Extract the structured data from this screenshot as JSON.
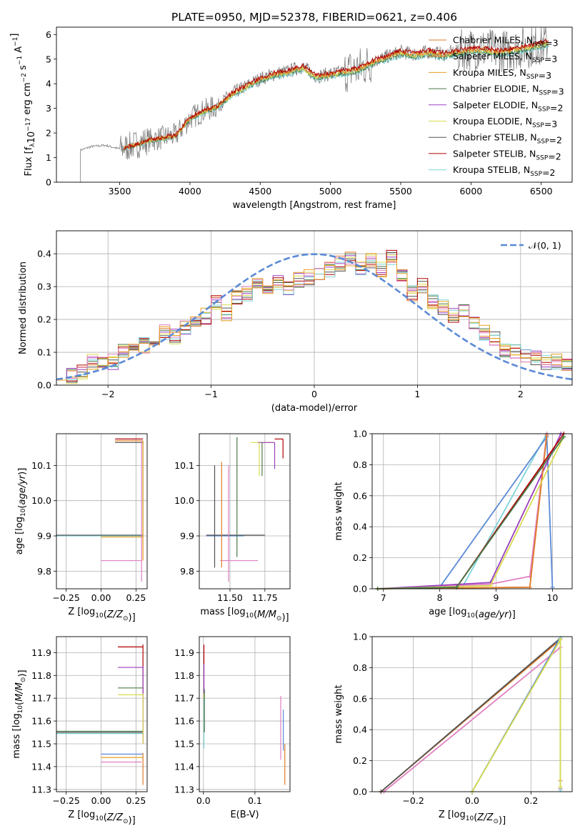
{
  "figure_title": "PLATE=0950, MJD=52378, FIBERID=0621, z=0.406",
  "colors": {
    "c1": "#1f77b4",
    "c2": "#e07b28",
    "c3": "#e6a020",
    "c4": "#4a7a4a",
    "c5": "#9a3fc0",
    "c6": "#d8dc50",
    "c7": "#505050",
    "c8": "#b00000",
    "c9": "#7fd4d8",
    "data": "#808080",
    "gauss": "#5b8ad6",
    "pink": "#e07fc0"
  },
  "chart_data": [
    {
      "id": "spectrum",
      "type": "line",
      "xlabel": "wavelength [Angstrom, rest frame]",
      "ylabel": "Flux [f",
      "ylabel_parts": [
        "Flux [f",
        "λ",
        "10",
        "−17",
        " erg cm",
        "−2",
        " s",
        "−1",
        " A",
        "−1",
        "]"
      ],
      "xlim": [
        3050,
        6720
      ],
      "ylim": [
        0,
        6.3
      ],
      "xticks": [
        "3500",
        "4000",
        "4500",
        "5000",
        "5500",
        "6000",
        "6500"
      ],
      "yticks": [
        "0",
        "1",
        "2",
        "3",
        "4",
        "5",
        "6"
      ],
      "legend_position": "top-right",
      "legend": [
        {
          "name": "Chabrier MILES, N",
          "sub": "SSP",
          "suffix": "=3",
          "color": "#e07b28"
        },
        {
          "name": "Salpeter MILES, N",
          "sub": "SSP",
          "suffix": "=3",
          "color": "#e07b28"
        },
        {
          "name": "Kroupa MILES, N",
          "sub": "SSP",
          "suffix": "=3",
          "color": "#e6a020"
        },
        {
          "name": "Chabrier ELODIE, N",
          "sub": "SSP",
          "suffix": "=3",
          "color": "#4a7a4a"
        },
        {
          "name": "Salpeter ELODIE, N",
          "sub": "SSP",
          "suffix": "=2",
          "color": "#9a3fc0"
        },
        {
          "name": "Kroupa ELODIE, N",
          "sub": "SSP",
          "suffix": "=3",
          "color": "#d8dc50"
        },
        {
          "name": "Chabrier STELIB, N",
          "sub": "SSP",
          "suffix": "=2",
          "color": "#505050"
        },
        {
          "name": "Salpeter STELIB, N",
          "sub": "SSP",
          "suffix": "=2",
          "color": "#b00000"
        },
        {
          "name": "Kroupa STELIB, N",
          "sub": "SSP",
          "suffix": "=2",
          "color": "#7fd4d8"
        }
      ],
      "data_wave": [
        3220,
        3300,
        3400,
        3500,
        3600,
        3700,
        3800,
        3900,
        4000,
        4100,
        4200,
        4300,
        4400,
        4500,
        4600,
        4700,
        4800,
        4900,
        5000,
        5100,
        5200,
        5300,
        5400,
        5500,
        5600,
        5700,
        5800,
        5900,
        6000,
        6100,
        6200,
        6300,
        6400,
        6550
      ],
      "data_flux": [
        1.3,
        1.45,
        1.5,
        1.35,
        1.5,
        1.7,
        1.8,
        1.9,
        2.6,
        2.9,
        3.1,
        3.6,
        3.9,
        4.2,
        4.4,
        4.5,
        4.7,
        4.3,
        4.4,
        4.5,
        4.6,
        4.9,
        5.1,
        5.3,
        5.2,
        5.3,
        5.2,
        5.3,
        5.4,
        5.4,
        5.3,
        5.4,
        5.5,
        5.7
      ],
      "model_start": 3530
    },
    {
      "id": "residuals",
      "type": "bar",
      "xlabel": "(data-model)/error",
      "ylabel": "Normed distribution",
      "xlim": [
        -2.5,
        2.5
      ],
      "ylim": [
        0,
        0.47
      ],
      "xticks": [
        "−2",
        "−1",
        "0",
        "1",
        "2"
      ],
      "yticks": [
        "0.0",
        "0.1",
        "0.2",
        "0.3",
        "0.4"
      ],
      "legend_position": "top-right",
      "legend_label": "𝒩(0, 1)",
      "bin_width": 0.1,
      "bin_centers": [
        -2.45,
        -2.35,
        -2.25,
        -2.15,
        -2.05,
        -1.95,
        -1.85,
        -1.75,
        -1.65,
        -1.55,
        -1.45,
        -1.35,
        -1.25,
        -1.15,
        -1.05,
        -0.95,
        -0.85,
        -0.75,
        -0.65,
        -0.55,
        -0.45,
        -0.35,
        -0.25,
        -0.15,
        -0.05,
        0.05,
        0.15,
        0.25,
        0.35,
        0.45,
        0.55,
        0.65,
        0.75,
        0.85,
        0.95,
        1.05,
        1.15,
        1.25,
        1.35,
        1.45,
        1.55,
        1.65,
        1.75,
        1.85,
        1.95,
        2.05,
        2.15,
        2.25,
        2.35,
        2.45
      ],
      "heights": [
        0.04,
        0.03,
        0.04,
        0.07,
        0.06,
        0.07,
        0.1,
        0.11,
        0.12,
        0.14,
        0.16,
        0.15,
        0.18,
        0.19,
        0.21,
        0.25,
        0.22,
        0.27,
        0.28,
        0.3,
        0.29,
        0.31,
        0.3,
        0.32,
        0.33,
        0.34,
        0.35,
        0.37,
        0.38,
        0.36,
        0.38,
        0.35,
        0.39,
        0.34,
        0.28,
        0.3,
        0.25,
        0.24,
        0.21,
        0.22,
        0.19,
        0.16,
        0.14,
        0.11,
        0.1,
        0.09,
        0.08,
        0.07,
        0.07,
        0.06
      ]
    },
    {
      "id": "age_vs_Z",
      "type": "scatter",
      "xlabel": "Z [log",
      "xlabel_parts": [
        "Z [log",
        "10",
        "(Z/Z",
        "⊙",
        ")]"
      ],
      "ylabel_parts": [
        "age  [log",
        "10",
        "(age/yr)]"
      ],
      "xlim": [
        -0.32,
        0.33
      ],
      "ylim": [
        9.75,
        10.19
      ],
      "xticks": [
        "−0.25",
        "0.00",
        "0.25"
      ],
      "yticks": [
        "9.8",
        "9.9",
        "10.0",
        "10.1"
      ]
    },
    {
      "id": "age_vs_mass",
      "type": "scatter",
      "xlabel_parts": [
        "mass [log",
        "10",
        "(M/M",
        "⊙",
        ")]"
      ],
      "xlim": [
        11.28,
        11.93
      ],
      "ylim": [
        9.75,
        10.19
      ],
      "xticks": [
        "11.50",
        "11.75"
      ],
      "yticks": [
        "9.8",
        "9.9",
        "10.0",
        "10.1"
      ]
    },
    {
      "id": "cum_age",
      "type": "line",
      "xlabel_parts": [
        "age  [log",
        "10",
        "(age/yr)]"
      ],
      "ylabel": "mass weight",
      "xlim": [
        6.8,
        10.35
      ],
      "ylim": [
        0,
        1
      ],
      "xticks": [
        "7",
        "8",
        "9",
        "10"
      ],
      "yticks": [
        "0.0",
        "0.2",
        "0.4",
        "0.6",
        "0.8",
        "1.0"
      ]
    },
    {
      "id": "mass_vs_Z",
      "type": "scatter",
      "xlabel_parts": [
        "Z [log",
        "10",
        "(Z/Z",
        "⊙",
        ")]"
      ],
      "ylabel_parts": [
        "mass [log",
        "10",
        "(M/M",
        "⊙",
        ")]"
      ],
      "xlim": [
        -0.32,
        0.33
      ],
      "ylim": [
        11.29,
        11.97
      ],
      "xticks": [
        "−0.25",
        "0.00",
        "0.25"
      ],
      "yticks": [
        "11.3",
        "11.4",
        "11.5",
        "11.6",
        "11.7",
        "11.8",
        "11.9"
      ]
    },
    {
      "id": "mass_vs_ebv",
      "type": "scatter",
      "xlabel": "E(B-V)",
      "xlim": [
        -0.008,
        0.168
      ],
      "ylim": [
        11.29,
        11.97
      ],
      "xticks": [
        "0.0",
        "0.1"
      ],
      "yticks": [
        "11.3",
        "11.4",
        "11.5",
        "11.6",
        "11.7",
        "11.8",
        "11.9"
      ]
    },
    {
      "id": "cum_Z",
      "type": "line",
      "xlabel_parts": [
        "Z [log",
        "10",
        "(Z/Z",
        "⊙",
        ")]"
      ],
      "ylabel": "mass weight",
      "xlim": [
        -0.34,
        0.34
      ],
      "ylim": [
        0,
        1
      ],
      "xticks": [
        "−0.2",
        "0.0",
        "0.2"
      ],
      "yticks": [
        "0.0",
        "0.2",
        "0.4",
        "0.6",
        "0.8",
        "1.0"
      ]
    }
  ]
}
